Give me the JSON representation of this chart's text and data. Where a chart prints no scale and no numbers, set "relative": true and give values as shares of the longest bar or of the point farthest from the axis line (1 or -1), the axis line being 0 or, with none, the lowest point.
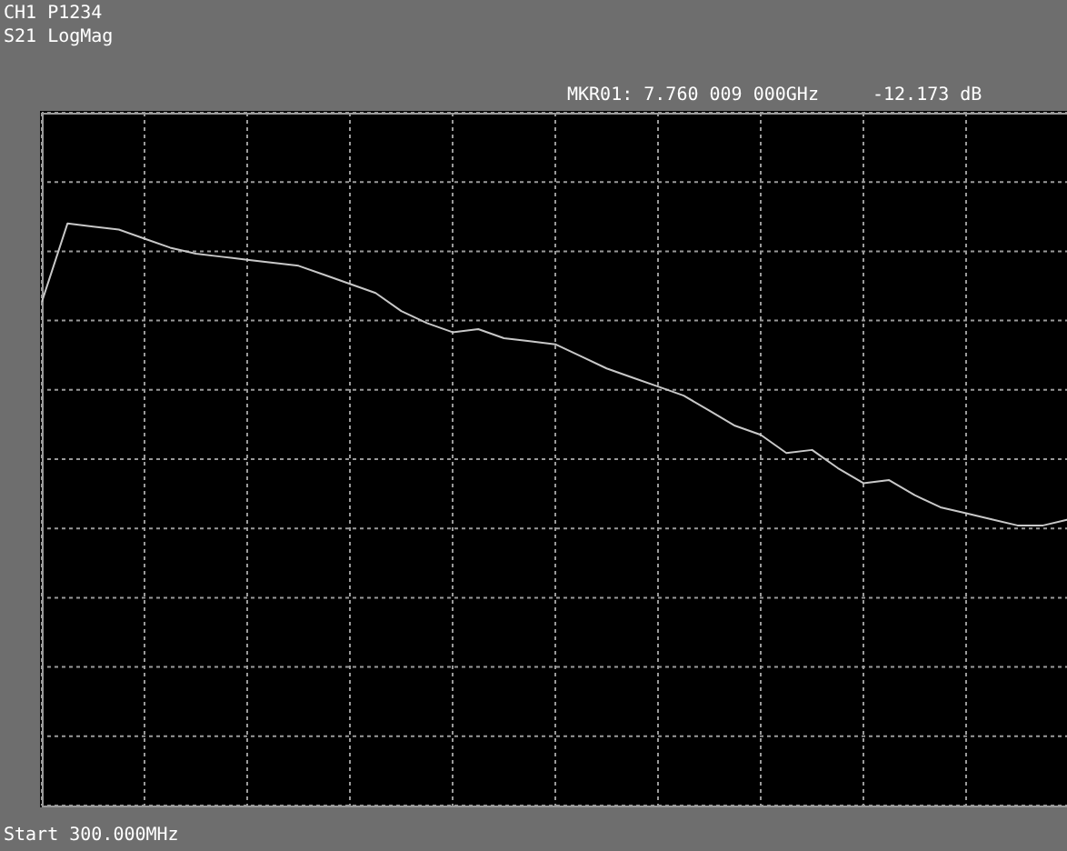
{
  "chart_data": {
    "type": "line",
    "title": "CH1 P1234",
    "subtitle": "S21 LogMag",
    "annotations": [
      "MKR01: 7.760 009 000GHz",
      "-12.173 dB",
      "Start 300.000MHz"
    ],
    "relative": true,
    "grid": true,
    "categories": [
      null,
      null,
      null,
      null,
      null,
      null,
      null,
      null,
      null,
      null,
      null,
      null,
      null,
      null,
      null,
      null,
      null,
      null,
      null,
      null,
      null,
      null,
      null,
      null,
      null,
      null,
      null,
      null,
      null,
      null,
      null,
      null,
      null,
      null,
      null,
      null,
      null,
      null,
      null,
      null,
      null
    ],
    "series": [
      {
        "color": "#c8c8c8",
        "values": [
          0.74,
          1.0,
          0.99,
          0.98,
          0.95,
          0.92,
          0.9,
          0.89,
          0.88,
          0.87,
          0.86,
          0.83,
          0.8,
          0.77,
          0.71,
          0.67,
          0.64,
          0.65,
          0.62,
          0.61,
          0.6,
          0.56,
          0.52,
          0.49,
          0.46,
          0.43,
          0.38,
          0.33,
          0.3,
          0.24,
          0.25,
          0.19,
          0.14,
          0.15,
          0.1,
          0.06,
          0.04,
          0.02,
          0,
          0,
          0.02
        ]
      }
    ]
  }
}
